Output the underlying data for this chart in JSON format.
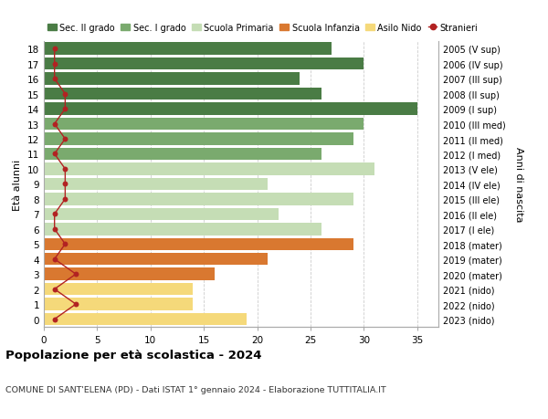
{
  "ages": [
    18,
    17,
    16,
    15,
    14,
    13,
    12,
    11,
    10,
    9,
    8,
    7,
    6,
    5,
    4,
    3,
    2,
    1,
    0
  ],
  "years": [
    "2005 (V sup)",
    "2006 (IV sup)",
    "2007 (III sup)",
    "2008 (II sup)",
    "2009 (I sup)",
    "2010 (III med)",
    "2011 (II med)",
    "2012 (I med)",
    "2013 (V ele)",
    "2014 (IV ele)",
    "2015 (III ele)",
    "2016 (II ele)",
    "2017 (I ele)",
    "2018 (mater)",
    "2019 (mater)",
    "2020 (mater)",
    "2021 (nido)",
    "2022 (nido)",
    "2023 (nido)"
  ],
  "bar_values": [
    27,
    30,
    24,
    26,
    35,
    30,
    29,
    26,
    31,
    21,
    29,
    22,
    26,
    29,
    21,
    16,
    14,
    14,
    19
  ],
  "bar_colors": [
    "#4a7c45",
    "#4a7c45",
    "#4a7c45",
    "#4a7c45",
    "#4a7c45",
    "#7aaa6e",
    "#7aaa6e",
    "#7aaa6e",
    "#c5ddb5",
    "#c5ddb5",
    "#c5ddb5",
    "#c5ddb5",
    "#c5ddb5",
    "#d97830",
    "#d97830",
    "#d97830",
    "#f5d97a",
    "#f5d97a",
    "#f5d97a"
  ],
  "stranieri_values": [
    1,
    1,
    1,
    2,
    2,
    1,
    2,
    1,
    2,
    2,
    2,
    1,
    1,
    2,
    1,
    3,
    1,
    3,
    1
  ],
  "stranieri_color": "#b22222",
  "ylabel_left": "Età alunni",
  "ylabel_right": "Anni di nascita",
  "title": "Popolazione per età scolastica - 2024",
  "subtitle": "COMUNE DI SANT'ELENA (PD) - Dati ISTAT 1° gennaio 2024 - Elaborazione TUTTITALIA.IT",
  "xlim": [
    0,
    37
  ],
  "xticks": [
    0,
    5,
    10,
    15,
    20,
    25,
    30,
    35
  ],
  "legend_labels": [
    "Sec. II grado",
    "Sec. I grado",
    "Scuola Primaria",
    "Scuola Infanzia",
    "Asilo Nido",
    "Stranieri"
  ],
  "legend_colors": [
    "#4a7c45",
    "#7aaa6e",
    "#c5ddb5",
    "#d97830",
    "#f5d97a",
    "#b22222"
  ],
  "background_color": "#ffffff",
  "grid_color": "#cccccc",
  "bar_height": 0.82
}
